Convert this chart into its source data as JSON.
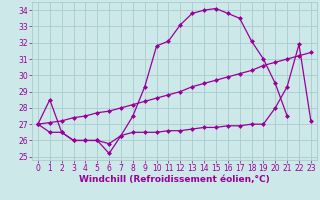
{
  "xlabel": "Windchill (Refroidissement éolien,°C)",
  "bg_color": "#cce8e8",
  "grid_color": "#aacccc",
  "line_color": "#990099",
  "xlim": [
    -0.5,
    23.5
  ],
  "ylim": [
    24.8,
    34.5
  ],
  "xticks": [
    0,
    1,
    2,
    3,
    4,
    5,
    6,
    7,
    8,
    9,
    10,
    11,
    12,
    13,
    14,
    15,
    16,
    17,
    18,
    19,
    20,
    21,
    22,
    23
  ],
  "yticks": [
    25,
    26,
    27,
    28,
    29,
    30,
    31,
    32,
    33,
    34
  ],
  "line1_x": [
    0,
    1,
    2,
    3,
    4,
    5,
    6,
    7,
    8,
    9,
    10,
    11,
    12,
    13,
    14,
    15,
    16,
    17,
    18,
    19,
    20,
    21
  ],
  "line1_y": [
    27.0,
    28.5,
    26.5,
    26.0,
    26.0,
    26.0,
    25.2,
    26.3,
    27.5,
    29.3,
    31.8,
    32.1,
    33.1,
    33.8,
    34.0,
    34.1,
    33.8,
    33.5,
    32.1,
    31.0,
    29.5,
    27.5
  ],
  "line2_x": [
    0,
    1,
    2,
    3,
    4,
    5,
    6,
    7,
    8,
    9,
    10,
    11,
    12,
    13,
    14,
    15,
    16,
    17,
    18,
    19,
    20,
    21,
    22,
    23
  ],
  "line2_y": [
    27.0,
    27.1,
    27.2,
    27.4,
    27.5,
    27.7,
    27.8,
    28.0,
    28.2,
    28.4,
    28.6,
    28.8,
    29.0,
    29.3,
    29.5,
    29.7,
    29.9,
    30.1,
    30.3,
    30.6,
    30.8,
    31.0,
    31.2,
    31.4
  ],
  "line3_x": [
    0,
    1,
    2,
    3,
    4,
    5,
    6,
    7,
    8,
    9,
    10,
    11,
    12,
    13,
    14,
    15,
    16,
    17,
    18,
    19,
    20,
    21,
    22,
    23
  ],
  "line3_y": [
    27.0,
    26.5,
    26.5,
    26.0,
    26.0,
    26.0,
    25.8,
    26.3,
    26.5,
    26.5,
    26.5,
    26.6,
    26.6,
    26.7,
    26.8,
    26.8,
    26.9,
    26.9,
    27.0,
    27.0,
    28.0,
    29.3,
    31.9,
    27.2
  ],
  "markersize": 2.5,
  "linewidth": 0.9,
  "tick_fontsize": 5.5,
  "xlabel_fontsize": 6.5
}
